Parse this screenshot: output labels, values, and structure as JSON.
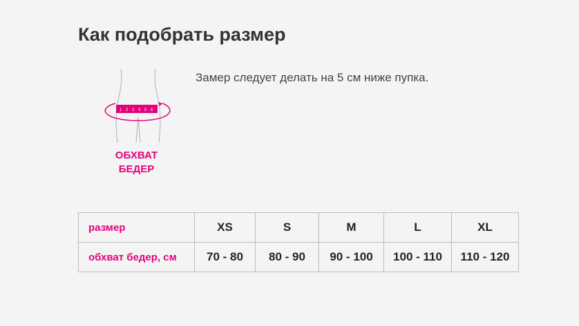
{
  "title": "Как подобрать размер",
  "description": "Замер следует делать на 5 см ниже пупка.",
  "figure": {
    "label_line1": "ОБХВАТ",
    "label_line2": "БЕДЕР",
    "tape_numbers": [
      "1",
      "2",
      "3",
      "4",
      "5",
      "6"
    ],
    "accent": "#e5007d"
  },
  "table": {
    "header_label": "размер",
    "sizes": [
      "XS",
      "S",
      "M",
      "L",
      "XL"
    ],
    "row_label": "обхват бедер, см",
    "values": [
      "70 - 80",
      "80 - 90",
      "90 - 100",
      "100 - 110",
      "110 - 120"
    ]
  }
}
